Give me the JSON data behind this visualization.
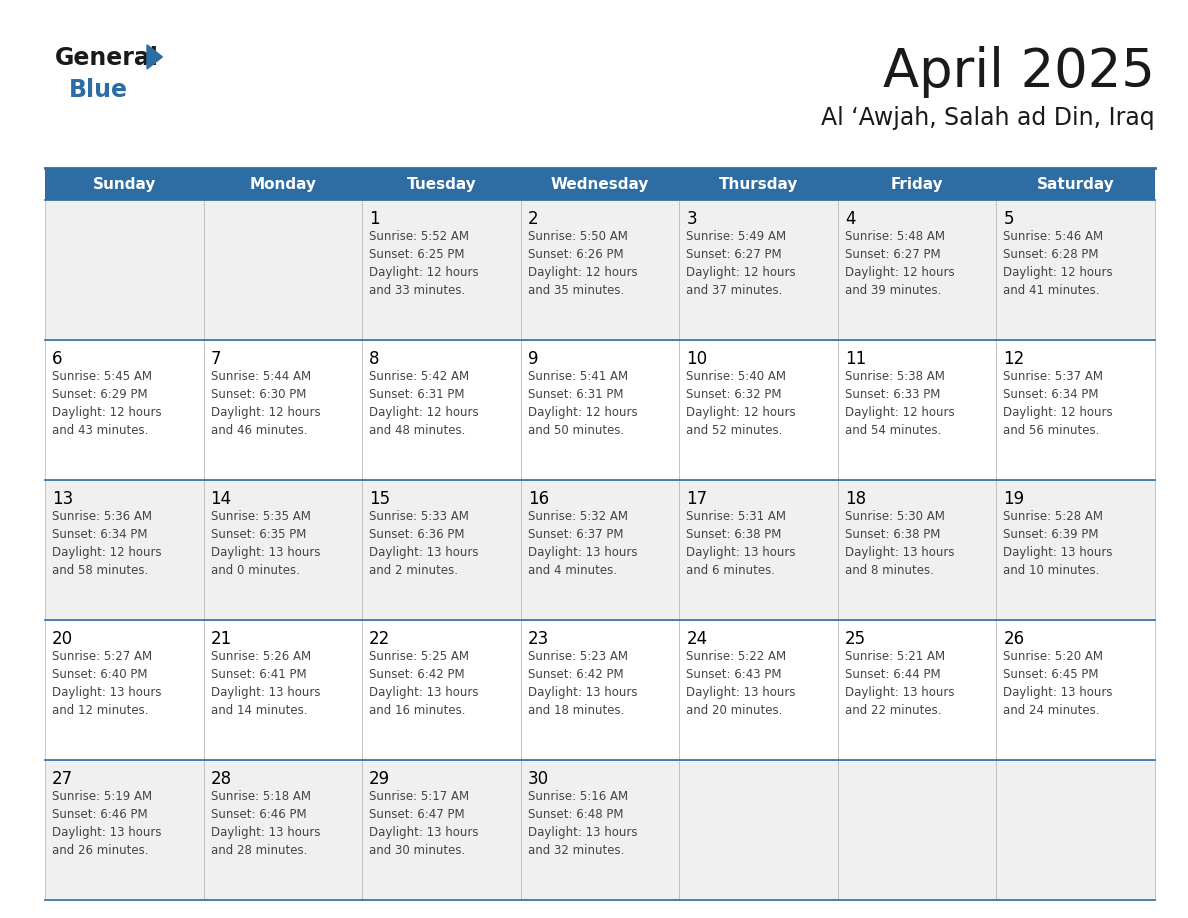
{
  "title": "April 2025",
  "subtitle": "Al ‘Awjah, Salah ad Din, Iraq",
  "days_of_week": [
    "Sunday",
    "Monday",
    "Tuesday",
    "Wednesday",
    "Thursday",
    "Friday",
    "Saturday"
  ],
  "header_bg": "#2E6DA4",
  "header_text": "#FFFFFF",
  "cell_bg_odd": "#F0F0F0",
  "cell_bg_even": "#FFFFFF",
  "day_number_color": "#000000",
  "text_color": "#444444",
  "title_color": "#1a1a1a",
  "logo_general_color": "#1a1a1a",
  "logo_blue_color": "#2E6DA4",
  "row_divider_color": "#2E6DA4",
  "cell_border_color": "#BBBBBB",
  "calendar": [
    [
      {
        "day": null,
        "text": ""
      },
      {
        "day": null,
        "text": ""
      },
      {
        "day": 1,
        "text": "Sunrise: 5:52 AM\nSunset: 6:25 PM\nDaylight: 12 hours\nand 33 minutes."
      },
      {
        "day": 2,
        "text": "Sunrise: 5:50 AM\nSunset: 6:26 PM\nDaylight: 12 hours\nand 35 minutes."
      },
      {
        "day": 3,
        "text": "Sunrise: 5:49 AM\nSunset: 6:27 PM\nDaylight: 12 hours\nand 37 minutes."
      },
      {
        "day": 4,
        "text": "Sunrise: 5:48 AM\nSunset: 6:27 PM\nDaylight: 12 hours\nand 39 minutes."
      },
      {
        "day": 5,
        "text": "Sunrise: 5:46 AM\nSunset: 6:28 PM\nDaylight: 12 hours\nand 41 minutes."
      }
    ],
    [
      {
        "day": 6,
        "text": "Sunrise: 5:45 AM\nSunset: 6:29 PM\nDaylight: 12 hours\nand 43 minutes."
      },
      {
        "day": 7,
        "text": "Sunrise: 5:44 AM\nSunset: 6:30 PM\nDaylight: 12 hours\nand 46 minutes."
      },
      {
        "day": 8,
        "text": "Sunrise: 5:42 AM\nSunset: 6:31 PM\nDaylight: 12 hours\nand 48 minutes."
      },
      {
        "day": 9,
        "text": "Sunrise: 5:41 AM\nSunset: 6:31 PM\nDaylight: 12 hours\nand 50 minutes."
      },
      {
        "day": 10,
        "text": "Sunrise: 5:40 AM\nSunset: 6:32 PM\nDaylight: 12 hours\nand 52 minutes."
      },
      {
        "day": 11,
        "text": "Sunrise: 5:38 AM\nSunset: 6:33 PM\nDaylight: 12 hours\nand 54 minutes."
      },
      {
        "day": 12,
        "text": "Sunrise: 5:37 AM\nSunset: 6:34 PM\nDaylight: 12 hours\nand 56 minutes."
      }
    ],
    [
      {
        "day": 13,
        "text": "Sunrise: 5:36 AM\nSunset: 6:34 PM\nDaylight: 12 hours\nand 58 minutes."
      },
      {
        "day": 14,
        "text": "Sunrise: 5:35 AM\nSunset: 6:35 PM\nDaylight: 13 hours\nand 0 minutes."
      },
      {
        "day": 15,
        "text": "Sunrise: 5:33 AM\nSunset: 6:36 PM\nDaylight: 13 hours\nand 2 minutes."
      },
      {
        "day": 16,
        "text": "Sunrise: 5:32 AM\nSunset: 6:37 PM\nDaylight: 13 hours\nand 4 minutes."
      },
      {
        "day": 17,
        "text": "Sunrise: 5:31 AM\nSunset: 6:38 PM\nDaylight: 13 hours\nand 6 minutes."
      },
      {
        "day": 18,
        "text": "Sunrise: 5:30 AM\nSunset: 6:38 PM\nDaylight: 13 hours\nand 8 minutes."
      },
      {
        "day": 19,
        "text": "Sunrise: 5:28 AM\nSunset: 6:39 PM\nDaylight: 13 hours\nand 10 minutes."
      }
    ],
    [
      {
        "day": 20,
        "text": "Sunrise: 5:27 AM\nSunset: 6:40 PM\nDaylight: 13 hours\nand 12 minutes."
      },
      {
        "day": 21,
        "text": "Sunrise: 5:26 AM\nSunset: 6:41 PM\nDaylight: 13 hours\nand 14 minutes."
      },
      {
        "day": 22,
        "text": "Sunrise: 5:25 AM\nSunset: 6:42 PM\nDaylight: 13 hours\nand 16 minutes."
      },
      {
        "day": 23,
        "text": "Sunrise: 5:23 AM\nSunset: 6:42 PM\nDaylight: 13 hours\nand 18 minutes."
      },
      {
        "day": 24,
        "text": "Sunrise: 5:22 AM\nSunset: 6:43 PM\nDaylight: 13 hours\nand 20 minutes."
      },
      {
        "day": 25,
        "text": "Sunrise: 5:21 AM\nSunset: 6:44 PM\nDaylight: 13 hours\nand 22 minutes."
      },
      {
        "day": 26,
        "text": "Sunrise: 5:20 AM\nSunset: 6:45 PM\nDaylight: 13 hours\nand 24 minutes."
      }
    ],
    [
      {
        "day": 27,
        "text": "Sunrise: 5:19 AM\nSunset: 6:46 PM\nDaylight: 13 hours\nand 26 minutes."
      },
      {
        "day": 28,
        "text": "Sunrise: 5:18 AM\nSunset: 6:46 PM\nDaylight: 13 hours\nand 28 minutes."
      },
      {
        "day": 29,
        "text": "Sunrise: 5:17 AM\nSunset: 6:47 PM\nDaylight: 13 hours\nand 30 minutes."
      },
      {
        "day": 30,
        "text": "Sunrise: 5:16 AM\nSunset: 6:48 PM\nDaylight: 13 hours\nand 32 minutes."
      },
      {
        "day": null,
        "text": ""
      },
      {
        "day": null,
        "text": ""
      },
      {
        "day": null,
        "text": ""
      }
    ]
  ]
}
